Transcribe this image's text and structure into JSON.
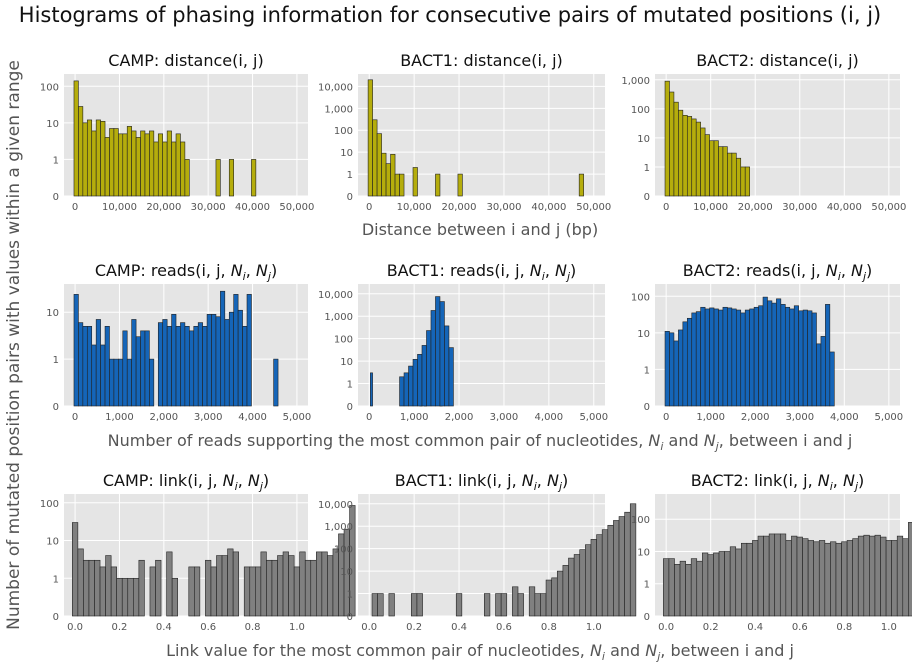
{
  "suptitle": "Histograms of phasing information for consecutive pairs of mutated positions (i, j)",
  "ylabel": "Number of mutated position pairs with values within a given range",
  "row_xlabels": [
    {
      "text": "Distance between i and j (bp)",
      "math": false
    },
    {
      "text": "Number of reads supporting the most common pair of nucleotides, ",
      "suffix": ", between i and j",
      "math": true
    },
    {
      "text": "Link value for the most common pair of nucleotides, ",
      "suffix": ", between i and j",
      "math": true
    }
  ],
  "colors": {
    "distance": "#b5ad0c",
    "reads": "#1565b8",
    "link": "#808080",
    "panel_bg": "#e5e5e5",
    "grid": "#ffffff",
    "bar_edge": "#222222"
  },
  "chart_data": [
    {
      "type": "bar",
      "title": "CAMP: distance(i, j)",
      "row": 0,
      "col": 0,
      "color_key": "distance",
      "scale": "symlog",
      "ymax": 150,
      "yticks": [
        0,
        1,
        10,
        100
      ],
      "ytick_labels": [
        "0",
        "1",
        "10",
        "100"
      ],
      "xlim": [
        -2500,
        52500
      ],
      "xticks": [
        0,
        10000,
        20000,
        30000,
        40000,
        50000
      ],
      "xtick_labels": [
        "0",
        "10,000",
        "20,000",
        "30,000",
        "40,000",
        "50,000"
      ],
      "bin_start": -250,
      "bin_width": 1000,
      "values": [
        140,
        28,
        10,
        12,
        6,
        12,
        11,
        4,
        7,
        7,
        5,
        5,
        8,
        6,
        4,
        6,
        5,
        6,
        3,
        5,
        3,
        6,
        3,
        5,
        3,
        1,
        0,
        0,
        0,
        0,
        0,
        0,
        1,
        0,
        0,
        1,
        0,
        0,
        0,
        0,
        1,
        0,
        0,
        0,
        0,
        0,
        0,
        0,
        0,
        0
      ]
    },
    {
      "type": "bar",
      "title": "BACT1: distance(i, j)",
      "row": 0,
      "col": 1,
      "color_key": "distance",
      "scale": "symlog",
      "ymax": 20000,
      "yticks": [
        0,
        1,
        10,
        100,
        1000,
        10000
      ],
      "ytick_labels": [
        "0",
        "1",
        "10",
        "100",
        "1,000",
        "10,000"
      ],
      "xlim": [
        -2500,
        52500
      ],
      "xticks": [
        0,
        10000,
        20000,
        30000,
        40000,
        50000
      ],
      "xtick_labels": [
        "0",
        "10,000",
        "20,000",
        "30,000",
        "40,000",
        "50,000"
      ],
      "bin_start": -250,
      "bin_width": 1000,
      "values": [
        20000,
        300,
        70,
        9,
        3,
        8,
        1,
        1,
        0,
        0,
        2,
        0,
        0,
        0,
        0,
        1,
        0,
        0,
        0,
        0,
        1,
        0,
        0,
        0,
        0,
        0,
        0,
        0,
        0,
        0,
        0,
        0,
        0,
        0,
        0,
        0,
        0,
        0,
        0,
        0,
        0,
        0,
        0,
        0,
        0,
        0,
        0,
        1,
        0,
        0
      ]
    },
    {
      "type": "bar",
      "title": "BACT2: distance(i, j)",
      "row": 0,
      "col": 2,
      "color_key": "distance",
      "scale": "symlog",
      "ymax": 1000,
      "yticks": [
        0,
        1,
        10,
        100,
        1000
      ],
      "ytick_labels": [
        "0",
        "1",
        "10",
        "100",
        "1,000"
      ],
      "xlim": [
        -2500,
        52500
      ],
      "xticks": [
        0,
        10000,
        20000,
        30000,
        40000,
        50000
      ],
      "xtick_labels": [
        "0",
        "10,000",
        "20,000",
        "30,000",
        "40,000",
        "50,000"
      ],
      "bin_start": -250,
      "bin_width": 1000,
      "values": [
        900,
        380,
        170,
        90,
        60,
        55,
        45,
        35,
        22,
        13,
        8,
        8,
        5,
        5,
        3,
        3,
        2,
        1,
        1,
        0
      ]
    },
    {
      "type": "bar",
      "title": "CAMP: reads(i, j, ",
      "title_math": true,
      "row": 1,
      "col": 0,
      "color_key": "reads",
      "scale": "symlog",
      "ymax": 30,
      "yticks": [
        0,
        1,
        10
      ],
      "ytick_labels": [
        "0",
        "1",
        "10"
      ],
      "xlim": [
        -250,
        5250
      ],
      "xticks": [
        0,
        1000,
        2000,
        3000,
        4000,
        5000
      ],
      "xtick_labels": [
        "0",
        "1,000",
        "2,000",
        "3,000",
        "4,000",
        "5,000"
      ],
      "bin_start": -25,
      "bin_width": 100,
      "values": [
        24,
        6,
        5,
        5,
        2,
        7,
        2,
        5,
        1,
        1,
        1,
        4,
        1,
        7,
        3,
        4,
        4,
        1,
        0,
        6,
        7,
        5,
        9,
        5,
        6,
        5,
        4,
        5,
        6,
        5,
        9,
        9,
        8,
        28,
        7,
        10,
        24,
        11,
        5,
        24,
        0,
        0,
        0,
        0,
        0,
        1
      ]
    },
    {
      "type": "bar",
      "title": "BACT1: reads(i, j, ",
      "title_math": true,
      "row": 1,
      "col": 1,
      "color_key": "reads",
      "scale": "symlog",
      "ymax": 15000,
      "yticks": [
        0,
        1,
        10,
        100,
        1000,
        10000
      ],
      "ytick_labels": [
        "0",
        "1",
        "10",
        "100",
        "1,000",
        "10,000"
      ],
      "xlim": [
        -250,
        5250
      ],
      "xticks": [
        0,
        1000,
        2000,
        3000,
        4000,
        5000
      ],
      "xtick_labels": [
        "0",
        "1,000",
        "2,000",
        "3,000",
        "4,000",
        "5,000"
      ],
      "bin_start": -25,
      "bin_width": 50,
      "values": [
        0,
        3,
        0,
        0,
        0,
        0,
        0,
        0,
        0,
        0,
        0,
        0,
        0,
        0,
        0,
        0,
        0,
        0,
        0,
        0,
        0,
        0,
        0,
        1,
        0,
        1,
        0,
        0,
        0,
        0,
        0,
        0,
        1,
        0,
        0,
        0,
        0,
        0,
        0,
        0,
        0,
        0,
        0,
        0,
        0,
        0,
        0,
        0,
        0,
        0,
        0,
        0,
        0,
        0,
        0,
        0,
        0,
        0,
        0,
        0,
        0,
        0,
        0,
        0,
        0,
        0,
        0,
        0,
        0,
        0,
        0,
        0,
        0,
        0,
        0,
        0,
        0,
        0,
        0,
        0,
        0,
        0,
        0,
        0,
        0,
        0,
        0,
        0,
        0,
        0,
        0,
        0,
        0,
        0,
        0,
        0,
        0,
        0,
        0,
        0,
        0
      ],
      "values_fine": {
        "bin_start": 675,
        "bin_width": 100,
        "values": [
          2,
          3,
          6,
          12,
          20,
          50,
          230,
          1800,
          7500,
          4500,
          370,
          40
        ]
      }
    },
    {
      "type": "bar",
      "title": "BACT2: reads(i, j, ",
      "title_math": true,
      "row": 1,
      "col": 2,
      "color_key": "reads",
      "scale": "symlog",
      "ymax": 150,
      "yticks": [
        0,
        1,
        10,
        100
      ],
      "ytick_labels": [
        "0",
        "1",
        "10",
        "100"
      ],
      "xlim": [
        -250,
        5250
      ],
      "xticks": [
        0,
        1000,
        2000,
        3000,
        4000,
        5000
      ],
      "xtick_labels": [
        "0",
        "1,000",
        "2,000",
        "3,000",
        "4,000",
        "5,000"
      ],
      "bin_start": -25,
      "bin_width": 100,
      "values": [
        11,
        10,
        6,
        12,
        20,
        25,
        35,
        38,
        50,
        45,
        48,
        45,
        42,
        50,
        48,
        45,
        42,
        35,
        42,
        45,
        50,
        55,
        95,
        75,
        65,
        85,
        60,
        50,
        45,
        55,
        40,
        42,
        40,
        35,
        5,
        8,
        60,
        3,
        0,
        0,
        0,
        0,
        0,
        0,
        0,
        0
      ]
    },
    {
      "type": "bar",
      "title": "CAMP: link(i, j, ",
      "title_math": true,
      "row": 2,
      "col": 0,
      "color_key": "link",
      "scale": "symlog",
      "ymax": 120,
      "yticks": [
        0,
        1,
        10,
        100
      ],
      "ytick_labels": [
        "0",
        "1",
        "10",
        "100"
      ],
      "xlim": [
        -0.05,
        1.05
      ],
      "xticks": [
        0,
        0.2,
        0.4,
        0.6,
        0.8,
        1.0
      ],
      "xtick_labels": [
        "0.0",
        "0.2",
        "0.4",
        "0.6",
        "0.8",
        "1.0"
      ],
      "bin_start": -0.0125,
      "bin_width": 0.025,
      "values": [
        30,
        6,
        3,
        3,
        3,
        2,
        4,
        2,
        1,
        1,
        1,
        1,
        3,
        0,
        2,
        3,
        0,
        5,
        1,
        0,
        0,
        2,
        2,
        0,
        3,
        2,
        4,
        4,
        6,
        5,
        0,
        2,
        2,
        2,
        5,
        3,
        3,
        4,
        5,
        4,
        2,
        5,
        3,
        3,
        5,
        5,
        4,
        6,
        15,
        20,
        85
      ]
    },
    {
      "type": "bar",
      "title": "BACT1: link(i, j, ",
      "title_math": true,
      "row": 2,
      "col": 1,
      "color_key": "link",
      "scale": "symlog",
      "ymax": 15000,
      "yticks": [
        0,
        1,
        10,
        100,
        1000,
        10000
      ],
      "ytick_labels": [
        "0",
        "1",
        "10",
        "100",
        "1,000",
        "10,000"
      ],
      "xlim": [
        -0.05,
        1.05
      ],
      "xticks": [
        0,
        0.2,
        0.4,
        0.6,
        0.8,
        1.0
      ],
      "xtick_labels": [
        "0.0",
        "0.2",
        "0.4",
        "0.6",
        "0.8",
        "1.0"
      ],
      "bin_start": -0.0125,
      "bin_width": 0.025,
      "values": [
        0,
        1,
        1,
        0,
        1,
        0,
        0,
        0,
        1,
        1,
        0,
        0,
        0,
        0,
        0,
        0,
        1,
        0,
        0,
        0,
        0,
        1,
        0,
        1,
        1,
        0,
        2,
        1,
        0,
        2,
        1,
        1,
        4,
        5,
        10,
        18,
        38,
        55,
        90,
        150,
        260,
        420,
        700,
        1100,
        1800,
        2700,
        4200,
        10000
      ]
    },
    {
      "type": "bar",
      "title": "BACT2: link(i, j, ",
      "title_math": true,
      "row": 2,
      "col": 2,
      "color_key": "link",
      "scale": "symlog",
      "ymax": 400,
      "yticks": [
        0,
        1,
        10,
        100
      ],
      "ytick_labels": [
        "0",
        "1",
        "10",
        "100"
      ],
      "xlim": [
        -0.05,
        1.05
      ],
      "xticks": [
        0,
        0.2,
        0.4,
        0.6,
        0.8,
        1.0
      ],
      "xtick_labels": [
        "0.0",
        "0.2",
        "0.4",
        "0.6",
        "0.8",
        "1.0"
      ],
      "bin_start": -0.0125,
      "bin_width": 0.025,
      "values": [
        6,
        6,
        4,
        5,
        4,
        6,
        5,
        9,
        8,
        9,
        10,
        10,
        14,
        12,
        18,
        18,
        22,
        30,
        30,
        35,
        35,
        35,
        22,
        30,
        28,
        25,
        22,
        20,
        22,
        18,
        20,
        18,
        20,
        22,
        25,
        30,
        32,
        30,
        32,
        28,
        22,
        22,
        30,
        25,
        80,
        350
      ]
    }
  ]
}
